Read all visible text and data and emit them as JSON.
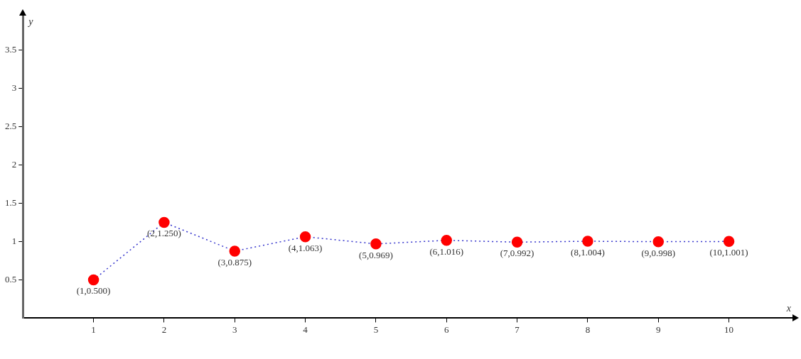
{
  "chart_data": {
    "type": "line",
    "xlabel": "x",
    "ylabel": "y",
    "x": [
      1,
      2,
      3,
      4,
      5,
      6,
      7,
      8,
      9,
      10
    ],
    "series": [
      {
        "color": "#ff0000",
        "values": [
          0.5,
          1.25,
          0.875,
          1.063,
          0.969,
          1.016,
          0.992,
          1.004,
          0.998,
          1.001
        ],
        "value_labels": [
          "(1,0.500)",
          "(2,1.250)",
          "(3,0.875)",
          "(4,1.063)",
          "(5,0.969)",
          "(6,1.016)",
          "(7,0.992)",
          "(8,1.004)",
          "(9,0.998)",
          "(10,1.001)"
        ]
      }
    ],
    "xlim": [
      0,
      10.9
    ],
    "xticks": [
      1,
      2,
      3,
      4,
      5,
      6,
      7,
      8,
      9,
      10
    ],
    "ylim": [
      0,
      3.95
    ],
    "yticks": [
      0.5,
      1,
      1.5,
      2,
      2.5,
      3,
      3.5
    ],
    "grid": false,
    "legend": false,
    "marker": "circle",
    "line_style": "dotted"
  }
}
